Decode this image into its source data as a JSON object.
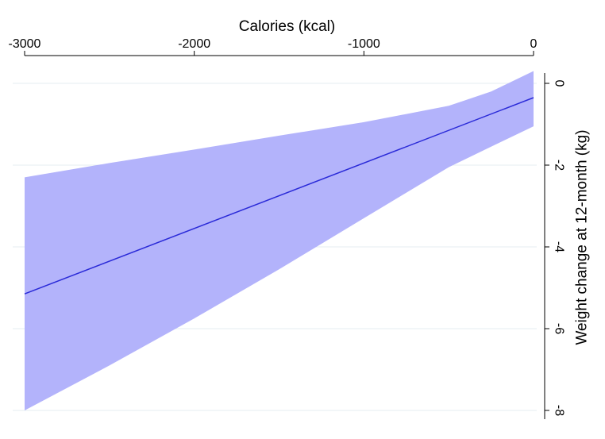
{
  "chart_data": {
    "type": "line",
    "title": "",
    "xlabel": "Calories (kcal)",
    "ylabel": "Weight change at 12-month (kg)",
    "x_axis_position": "top",
    "y_axis_position": "right",
    "x_ticks": [
      -3000,
      -2000,
      -1000,
      0
    ],
    "x_tick_labels": [
      "-3000",
      "-2000",
      "-1000",
      "0"
    ],
    "y_ticks": [
      0,
      -2,
      -4,
      -6,
      -8
    ],
    "y_tick_labels": [
      "0",
      "-2",
      "-4",
      "-6",
      "-8"
    ],
    "xlim": [
      -3000,
      0
    ],
    "ylim": [
      -8,
      0
    ],
    "grid": "horizontal",
    "series": [
      {
        "x": [
          -3000,
          0
        ],
        "y": [
          -5.15,
          -0.35
        ]
      }
    ],
    "confidence_band": {
      "x": [
        -3000,
        -2500,
        -2000,
        -1500,
        -1000,
        -500,
        -250,
        0
      ],
      "upper": [
        -2.3,
        -1.95,
        -1.62,
        -1.28,
        -0.95,
        -0.55,
        -0.2,
        0.3
      ],
      "lower": [
        -8.0,
        -6.9,
        -5.75,
        -4.55,
        -3.3,
        -2.05,
        -1.55,
        -1.05
      ]
    },
    "colors": {
      "line": "#2a2ad8",
      "band": "#b3b3fb",
      "grid": "#e6eef2",
      "axis": "#000000"
    }
  }
}
